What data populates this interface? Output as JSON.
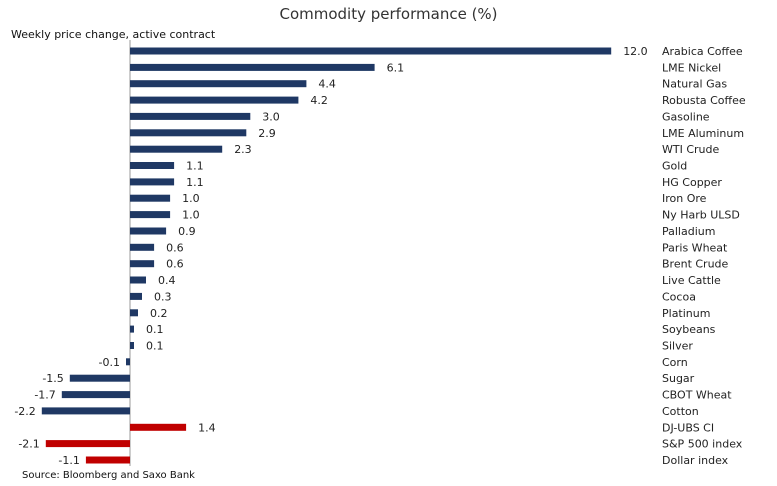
{
  "chart_data": {
    "type": "bar",
    "orientation": "horizontal",
    "title": "Commodity performance (%)",
    "subtitle": "Weekly price change, active contract",
    "source": "Source: Bloomberg and Saxo Bank",
    "colors": {
      "commodity": "#1f3864",
      "benchmark": "#c00000"
    },
    "grid": false,
    "legend": "none",
    "categories": [
      "Arabica Coffee",
      "LME Nickel",
      "Natural Gas",
      "Robusta Coffee",
      "Gasoline",
      "LME Aluminum",
      "WTI Crude",
      "Gold",
      "HG Copper",
      "Iron Ore",
      "Ny Harb ULSD",
      "Palladium",
      "Paris Wheat",
      "Brent Crude",
      "Live Cattle",
      "Cocoa",
      "Platinum",
      "Soybeans",
      "Silver",
      "Corn",
      "Sugar",
      "CBOT Wheat",
      "Cotton",
      "DJ-UBS CI",
      "S&P 500 index",
      "Dollar index"
    ],
    "values": [
      12.0,
      6.1,
      4.4,
      4.2,
      3.0,
      2.9,
      2.3,
      1.1,
      1.1,
      1.0,
      1.0,
      0.9,
      0.6,
      0.6,
      0.4,
      0.3,
      0.2,
      0.1,
      0.1,
      -0.1,
      -1.5,
      -1.7,
      -2.2,
      1.4,
      -2.1,
      -1.1
    ],
    "value_labels": [
      "12.0",
      "6.1",
      "4.4",
      "4.2",
      "3.0",
      "2.9",
      "2.3",
      "1.1",
      "1.1",
      "1.0",
      "1.0",
      "0.9",
      "0.6",
      "0.6",
      "0.4",
      "0.3",
      "0.2",
      "0.1",
      "0.1",
      "-0.1",
      "-1.5",
      "-1.7",
      "-2.2",
      "1.4",
      "-2.1",
      "-1.1"
    ],
    "groups": [
      "commodity",
      "commodity",
      "commodity",
      "commodity",
      "commodity",
      "commodity",
      "commodity",
      "commodity",
      "commodity",
      "commodity",
      "commodity",
      "commodity",
      "commodity",
      "commodity",
      "commodity",
      "commodity",
      "commodity",
      "commodity",
      "commodity",
      "commodity",
      "commodity",
      "commodity",
      "commodity",
      "benchmark",
      "benchmark",
      "benchmark"
    ]
  }
}
